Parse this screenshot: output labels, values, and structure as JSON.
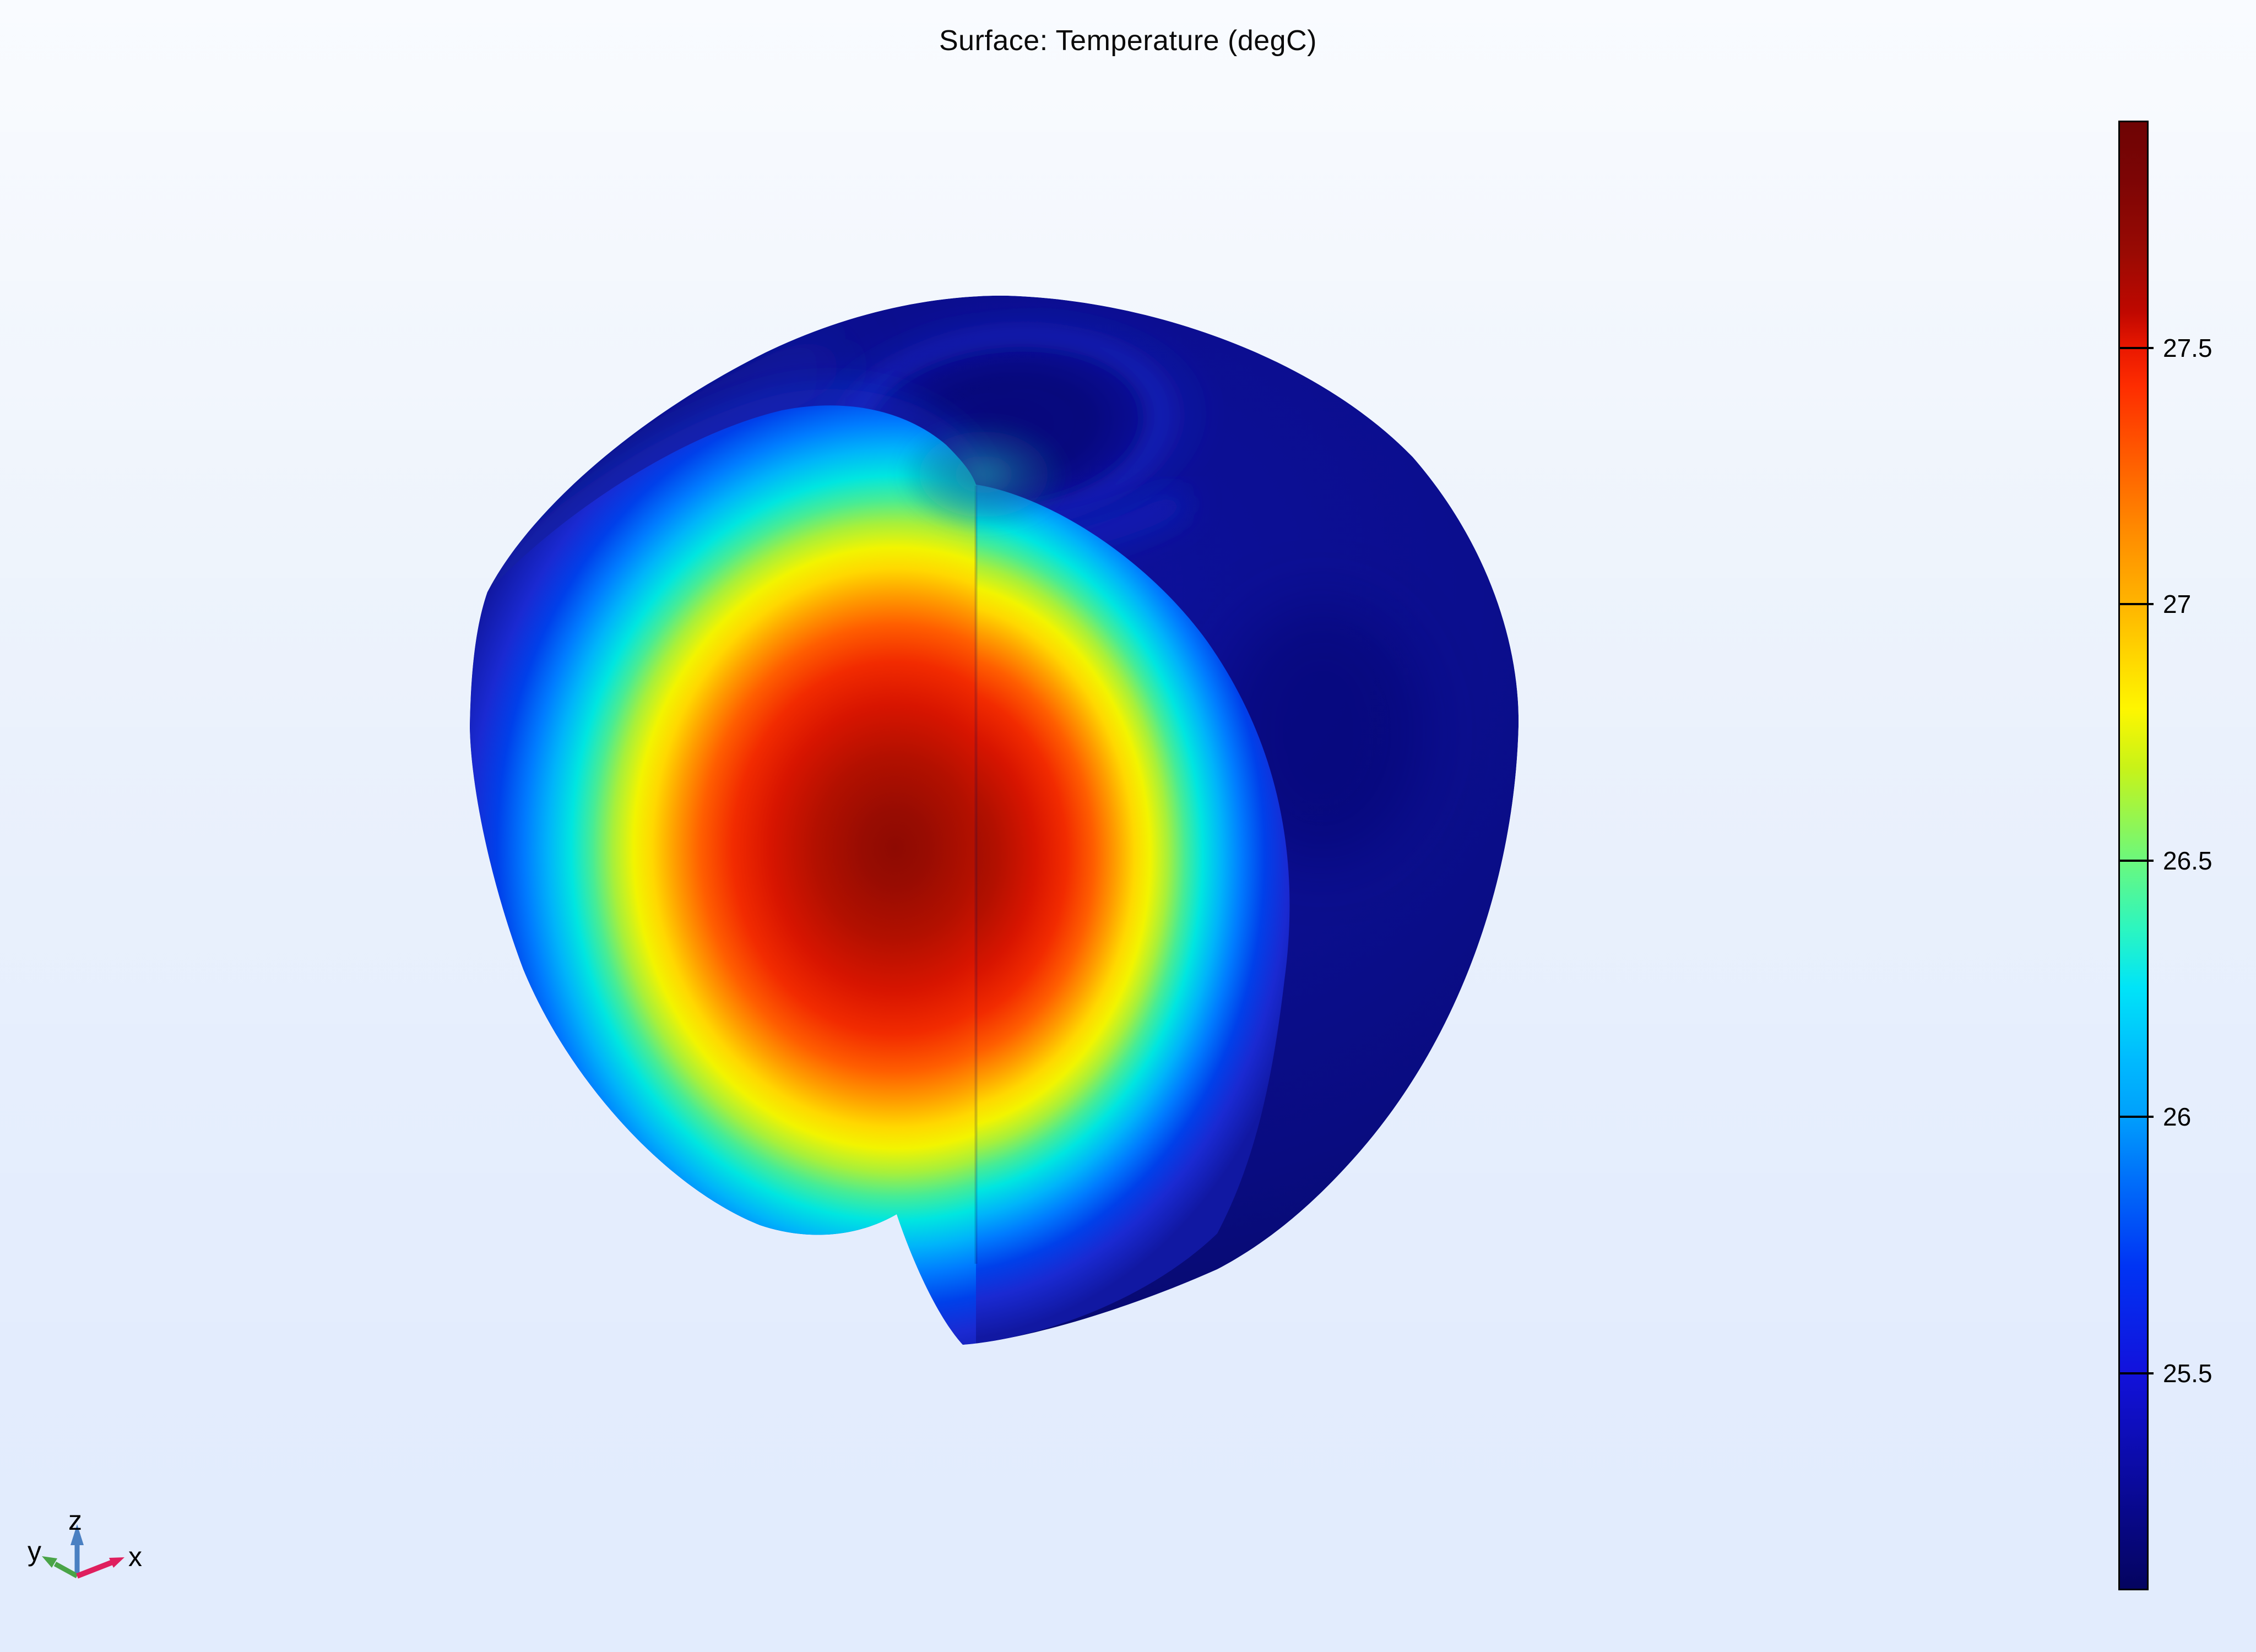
{
  "plot": {
    "title": "Surface: Temperature (degC)"
  },
  "chart_data": {
    "type": "surface",
    "title": "Surface: Temperature (degC)",
    "quantity": "Temperature",
    "unit": "degC",
    "legend_position": "right colorbar",
    "grid": false,
    "colorbar": {
      "orientation": "vertical",
      "position": "right",
      "tick_labels": [
        "27.5",
        "27",
        "26.5",
        "26",
        "25.5"
      ],
      "tick_values": [
        27.5,
        27.0,
        26.5,
        26.0,
        25.5
      ],
      "scale_max_estimate": 27.94,
      "scale_min_estimate": 25.08,
      "colormap": "rainbow",
      "gradient_stops_top_to_bottom": [
        {
          "pos": 0,
          "color": "#6e0404"
        },
        {
          "pos": 4,
          "color": "#7d0505"
        },
        {
          "pos": 9,
          "color": "#9a0a03"
        },
        {
          "pos": 13,
          "color": "#c00800"
        },
        {
          "pos": 15.4,
          "color": "#ea1800"
        },
        {
          "pos": 18,
          "color": "#fe2d00"
        },
        {
          "pos": 23,
          "color": "#ff5d00"
        },
        {
          "pos": 28,
          "color": "#ff8c00"
        },
        {
          "pos": 32.8,
          "color": "#ffb400"
        },
        {
          "pos": 36,
          "color": "#ffd200"
        },
        {
          "pos": 40,
          "color": "#fef600"
        },
        {
          "pos": 44,
          "color": "#c8f318"
        },
        {
          "pos": 50.3,
          "color": "#6cf87c"
        },
        {
          "pos": 55,
          "color": "#2cf6c0"
        },
        {
          "pos": 59,
          "color": "#00e4f8"
        },
        {
          "pos": 64,
          "color": "#00bafe"
        },
        {
          "pos": 67.7,
          "color": "#00a0fc"
        },
        {
          "pos": 72,
          "color": "#0070fa"
        },
        {
          "pos": 78,
          "color": "#0034f4"
        },
        {
          "pos": 85.2,
          "color": "#1212dc"
        },
        {
          "pos": 90,
          "color": "#0d0db4"
        },
        {
          "pos": 95,
          "color": "#080889"
        },
        {
          "pos": 100,
          "color": "#04045f"
        }
      ]
    },
    "scene_colors": {
      "hot_core": "#8e0a02",
      "cold_skin": "#0a0d86",
      "stem_glow": "#1c7fa0"
    }
  },
  "axis_triad": {
    "x": {
      "label": "x",
      "color": "#df1f5e"
    },
    "y": {
      "label": "y",
      "color": "#49a447"
    },
    "z": {
      "label": "z",
      "color": "#4a80c2"
    }
  }
}
